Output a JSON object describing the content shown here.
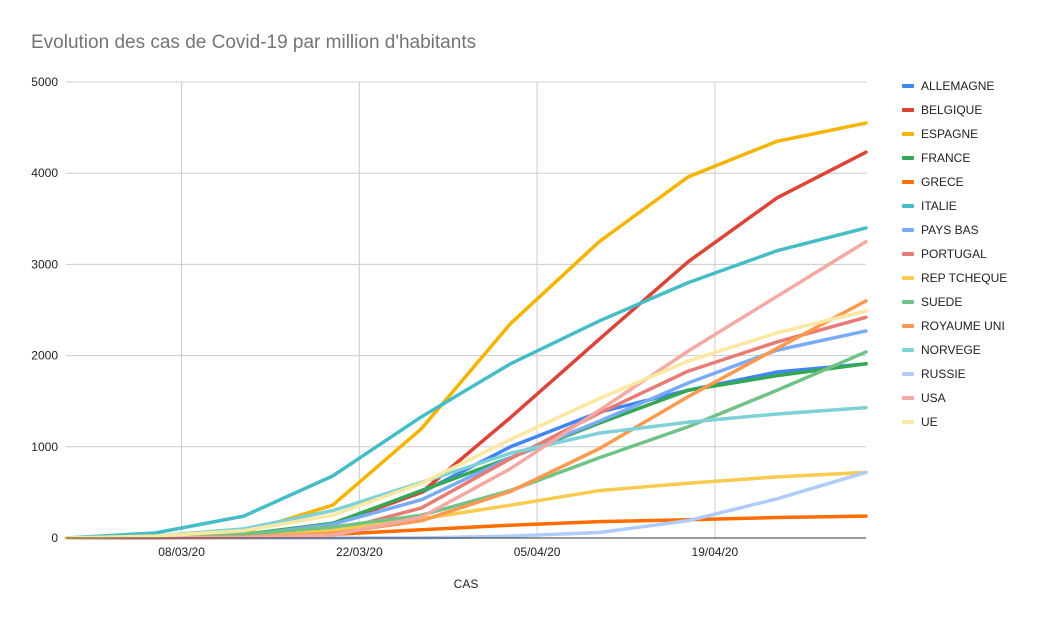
{
  "chart_data": {
    "type": "line",
    "title": "Evolution des cas de Covid-19 par million d'habitants",
    "xlabel": "CAS",
    "ylabel": "",
    "ylim": [
      0,
      5000
    ],
    "yticks": [
      "0",
      "1000",
      "2000",
      "3000",
      "4000",
      "5000"
    ],
    "xtick_labels": [
      "08/03/20",
      "22/03/20",
      "05/04/20",
      "19/04/20"
    ],
    "x_points": 10,
    "grid": true,
    "legend_position": "right",
    "series": [
      {
        "name": "ALLEMAGNE",
        "color": "#4285f4",
        "values": [
          0,
          2,
          30,
          160,
          500,
          1000,
          1380,
          1620,
          1820,
          1910
        ]
      },
      {
        "name": "BELGIQUE",
        "color": "#db4437",
        "values": [
          0,
          2,
          30,
          150,
          500,
          1320,
          2180,
          3030,
          3730,
          4230
        ]
      },
      {
        "name": "ESPAGNE",
        "color": "#f4b400",
        "values": [
          0,
          5,
          60,
          360,
          1200,
          2350,
          3250,
          3960,
          4350,
          4550
        ]
      },
      {
        "name": "FRANCE",
        "color": "#34a853",
        "values": [
          0,
          3,
          40,
          160,
          520,
          880,
          1260,
          1620,
          1780,
          1910
        ]
      },
      {
        "name": "GRECE",
        "color": "#ff6d01",
        "values": [
          0,
          1,
          10,
          40,
          90,
          140,
          180,
          200,
          225,
          240
        ]
      },
      {
        "name": "ITALIE",
        "color": "#46bdc6",
        "values": [
          0,
          55,
          240,
          680,
          1330,
          1910,
          2380,
          2800,
          3150,
          3400
        ]
      },
      {
        "name": "PAYS BAS",
        "color": "#7baaf7",
        "values": [
          0,
          2,
          30,
          150,
          420,
          880,
          1280,
          1700,
          2060,
          2270
        ]
      },
      {
        "name": "PORTUGAL",
        "color": "#e67c73",
        "values": [
          0,
          0,
          10,
          70,
          330,
          870,
          1370,
          1830,
          2150,
          2420
        ]
      },
      {
        "name": "REP TCHEQUE",
        "color": "#f7cb4d",
        "values": [
          0,
          1,
          20,
          90,
          210,
          360,
          520,
          600,
          670,
          720
        ]
      },
      {
        "name": "SUEDE",
        "color": "#71c287",
        "values": [
          0,
          5,
          40,
          120,
          250,
          520,
          880,
          1220,
          1620,
          2040
        ]
      },
      {
        "name": "ROYAUME UNI",
        "color": "#ff994d",
        "values": [
          0,
          1,
          10,
          50,
          190,
          510,
          980,
          1550,
          2080,
          2600
        ]
      },
      {
        "name": "NORVEGE",
        "color": "#7ed1d7",
        "values": [
          0,
          20,
          100,
          300,
          610,
          930,
          1150,
          1270,
          1360,
          1430
        ]
      },
      {
        "name": "RUSSIE",
        "color": "#aecbfa",
        "values": [
          0,
          0,
          0,
          0,
          2,
          20,
          60,
          190,
          430,
          720
        ]
      },
      {
        "name": "USA",
        "color": "#f4a9a3",
        "values": [
          0,
          0,
          5,
          30,
          230,
          760,
          1400,
          2050,
          2650,
          3250
        ]
      },
      {
        "name": "UE",
        "color": "#fce8a0",
        "values": [
          0,
          20,
          80,
          250,
          600,
          1080,
          1530,
          1940,
          2250,
          2490
        ]
      }
    ]
  }
}
